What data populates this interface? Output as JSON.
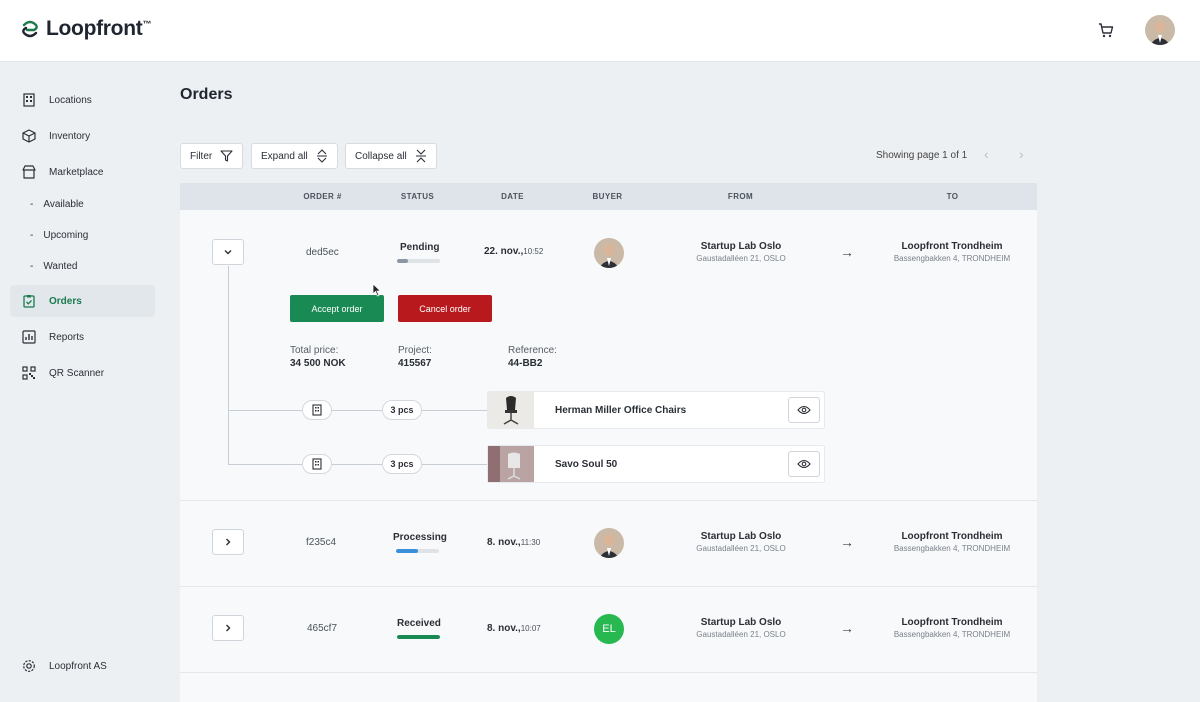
{
  "header": {
    "brand": "Loopfront",
    "brand_tm": "™",
    "cart_icon": "cart-icon",
    "avatar": "user-avatar"
  },
  "sidebar": {
    "items": [
      {
        "label": "Locations",
        "icon": "building-icon"
      },
      {
        "label": "Inventory",
        "icon": "box-icon"
      },
      {
        "label": "Marketplace",
        "icon": "storefront-icon"
      },
      {
        "label": "Orders",
        "icon": "clipboard-icon",
        "active": true
      },
      {
        "label": "Reports",
        "icon": "chart-icon"
      },
      {
        "label": "QR Scanner",
        "icon": "qr-icon"
      }
    ],
    "sub_items": [
      "Available",
      "Upcoming",
      "Wanted"
    ],
    "sub_dash": "-",
    "footer": {
      "label": "Loopfront AS",
      "icon": "gear-icon"
    }
  },
  "main": {
    "title": "Orders",
    "toolbar": {
      "filter": "Filter",
      "expand_all": "Expand all",
      "collapse_all": "Collapse all"
    },
    "paging": "Showing page 1 of 1",
    "columns": [
      "ORDER #",
      "STATUS",
      "DATE",
      "BUYER",
      "FROM",
      "TO"
    ],
    "orders": [
      {
        "id": "ded5ec",
        "status": "Pending",
        "progress": 0.25,
        "progress_color": "#8a96a3",
        "date": "22. nov.,",
        "time": "10:52",
        "buyer": "photo",
        "from_name": "Startup Lab Oslo",
        "from_addr": "Gaustadalléen 21, OSLO",
        "to_name": "Loopfront Trondheim",
        "to_addr": "Bassengbakken 4, TRONDHEIM",
        "expanded": true
      },
      {
        "id": "f235c4",
        "status": "Processing",
        "progress": 0.5,
        "progress_color": "#3a8fd9",
        "date": "8. nov.,",
        "time": "11:30",
        "buyer": "photo",
        "from_name": "Startup Lab Oslo",
        "from_addr": "Gaustadalléen 21, OSLO",
        "to_name": "Loopfront Trondheim",
        "to_addr": "Bassengbakken 4, TRONDHEIM"
      },
      {
        "id": "465cf7",
        "status": "Received",
        "progress": 1.0,
        "progress_color": "#1a8a55",
        "date": "8. nov.,",
        "time": "10:07",
        "buyer_initials": "EL",
        "from_name": "Startup Lab Oslo",
        "from_addr": "Gaustadalléen 21, OSLO",
        "to_name": "Loopfront Trondheim",
        "to_addr": "Bassengbakken 4, TRONDHEIM"
      }
    ],
    "detail": {
      "accept": "Accept order",
      "cancel": "Cancel order",
      "total_price_label": "Total price:",
      "total_price": "34 500 NOK",
      "project_label": "Project:",
      "project": "415567",
      "reference_label": "Reference:",
      "reference": "44-BB2",
      "items": [
        {
          "qty": "3 pcs",
          "name": "Herman Miller Office Chairs"
        },
        {
          "qty": "3 pcs",
          "name": "Savo Soul 50"
        }
      ]
    }
  },
  "colors": {
    "accent": "#1a7a4c",
    "accept": "#1a8a55",
    "cancel": "#b8191d"
  }
}
